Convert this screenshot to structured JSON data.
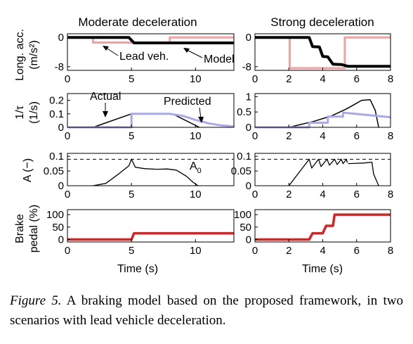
{
  "caption": {
    "label": "Figure 5.",
    "text": "A braking model based on the proposed framework, in two scenarios with lead vehicle deceleration."
  },
  "columns": [
    {
      "title": "Moderate deceleration",
      "xlabel": "Time (s)",
      "xlim": [
        0,
        13
      ],
      "xticks": [
        0,
        5,
        10
      ]
    },
    {
      "title": "Strong deceleration",
      "xlabel": "Time (s)",
      "xlim": [
        0,
        8
      ],
      "xticks": [
        0,
        2,
        4,
        6,
        8
      ]
    }
  ],
  "rows": [
    {
      "ylabel_lines": [
        "Long. acc.",
        "(m/s²)"
      ],
      "ylim": [
        -9,
        1
      ],
      "yticks": [
        0,
        -8
      ]
    },
    {
      "ylabel_lines": [
        "1/τ",
        "(1/s)"
      ],
      "ylim_left": [
        0,
        0.25
      ],
      "yticks_left": [
        0,
        0.1,
        0.2
      ],
      "ylim_right": [
        0,
        1.1
      ],
      "yticks_right": [
        0,
        0.5,
        1
      ]
    },
    {
      "ylabel_lines": [
        "A (−)"
      ],
      "ylim": [
        0,
        0.11
      ],
      "yticks": [
        0,
        0.05,
        0.1
      ]
    },
    {
      "ylabel_lines": [
        "Brake",
        "pedal (%)"
      ],
      "ylim": [
        -10,
        120
      ],
      "yticks": [
        0,
        50,
        100
      ]
    }
  ],
  "annotations": {
    "lead_veh": "Lead veh.",
    "model": "Model",
    "actual": "Actual",
    "predicted": "Predicted",
    "a0": "A",
    "a0_sub": "0"
  },
  "colors": {
    "model": "#000000",
    "lead": "#f4a0a0",
    "predicted": "#a8a8f0",
    "pedal": "#dd2020"
  },
  "chart_data": [
    {
      "type": "line",
      "title": "Moderate deceleration",
      "xlabel": "Time (s)",
      "ylabel": "Long. acc. (m/s²)",
      "xlim": [
        0,
        13
      ],
      "ylim": [
        -9,
        1
      ],
      "series": [
        {
          "name": "Lead veh.",
          "x": [
            0,
            2,
            2,
            8,
            8,
            13
          ],
          "y": [
            0,
            0,
            -1.4,
            -1.4,
            0,
            0
          ]
        },
        {
          "name": "Model",
          "x": [
            0,
            4.8,
            5.2,
            13
          ],
          "y": [
            0,
            0,
            -1.5,
            -1.5
          ]
        }
      ]
    },
    {
      "type": "line",
      "title": "Strong deceleration",
      "xlabel": "Time (s)",
      "ylabel": "Long. acc. (m/s²)",
      "xlim": [
        0,
        8
      ],
      "ylim": [
        -9,
        1
      ],
      "series": [
        {
          "x": [
            0,
            2.05,
            2.05,
            5.3,
            5.3,
            8
          ],
          "y": [
            0,
            0,
            -8.4,
            -8.4,
            0,
            0
          ]
        },
        {
          "x": [
            0,
            3.2,
            3.4,
            3.8,
            4.0,
            4.3,
            4.6,
            5.1,
            5.5,
            8
          ],
          "y": [
            0,
            0,
            -2.5,
            -2.6,
            -5.2,
            -5.3,
            -7.3,
            -7.4,
            -7.9,
            -7.9
          ]
        }
      ]
    },
    {
      "type": "line",
      "xlabel": "Time (s)",
      "ylabel": "1/τ (1/s)",
      "xlim": [
        0,
        13
      ],
      "ylim": [
        0,
        0.25
      ],
      "series": [
        {
          "name": "Actual",
          "x": [
            0,
            2,
            5,
            8.2,
            10.3
          ],
          "y": [
            0,
            0,
            0.1,
            0.1,
            0
          ]
        },
        {
          "name": "Predicted",
          "x": [
            0,
            5,
            5,
            8,
            9,
            10,
            11,
            12,
            13
          ],
          "y": [
            0,
            0,
            0.1,
            0.1,
            0.085,
            0.055,
            0.03,
            0.014,
            0.007
          ]
        }
      ]
    },
    {
      "type": "line",
      "xlabel": "Time (s)",
      "ylabel": "1/τ (1/s)",
      "xlim": [
        0,
        8
      ],
      "ylim": [
        0,
        1.1
      ],
      "series": [
        {
          "x": [
            0,
            2,
            3.5,
            4.5,
            5.4,
            6.3,
            6.8,
            7.1,
            7.3
          ],
          "y": [
            0,
            0,
            0.2,
            0.37,
            0.6,
            0.88,
            0.9,
            0.55,
            0
          ]
        },
        {
          "x": [
            0,
            3.2,
            3.2,
            4.3,
            4.3,
            5.2,
            5.2,
            8
          ],
          "y": [
            0,
            0,
            0.15,
            0.15,
            0.35,
            0.35,
            0.48,
            0.33
          ]
        }
      ]
    },
    {
      "type": "line",
      "xlabel": "Time (s)",
      "ylabel": "A (−)",
      "xlim": [
        0,
        13
      ],
      "ylim": [
        0,
        0.11
      ],
      "series": [
        {
          "name": "A₀",
          "x": [
            0,
            13
          ],
          "y": [
            0.09,
            0.09
          ]
        },
        {
          "x": [
            2,
            3,
            4,
            4.8,
            5,
            5.3,
            6,
            7,
            7.8,
            8.5,
            9.3,
            9.8,
            10.2
          ],
          "y": [
            0,
            0.008,
            0.04,
            0.068,
            0.09,
            0.063,
            0.058,
            0.056,
            0.057,
            0.053,
            0.032,
            0.012,
            0
          ]
        }
      ]
    },
    {
      "type": "line",
      "xlabel": "Time (s)",
      "ylabel": "A (−)",
      "xlim": [
        0,
        8
      ],
      "ylim": [
        0,
        0.11
      ],
      "series": [
        {
          "name": "A₀",
          "x": [
            0,
            8
          ],
          "y": [
            0.09,
            0.09
          ]
        },
        {
          "x": [
            2,
            3.2,
            3.35,
            3.75,
            3.9,
            4.25,
            4.4,
            4.7,
            4.85,
            5.1,
            5.2,
            5.4,
            5.45
          ],
          "y": [
            0,
            0.09,
            0.06,
            0.09,
            0.065,
            0.09,
            0.07,
            0.09,
            0.072,
            0.09,
            0.075,
            0.09,
            0.078
          ]
        },
        {
          "x": [
            5.5,
            6.4,
            6.9,
            7.0,
            7.3
          ],
          "y": [
            0.075,
            0.077,
            0.08,
            0.04,
            0
          ]
        }
      ]
    },
    {
      "type": "line",
      "xlabel": "Time (s)",
      "ylabel": "Brake pedal (%)",
      "xlim": [
        0,
        13
      ],
      "ylim": [
        -10,
        120
      ],
      "series": [
        {
          "x": [
            0,
            5,
            5.2,
            13
          ],
          "y": [
            0,
            0,
            25,
            25
          ]
        }
      ]
    },
    {
      "type": "line",
      "xlabel": "Time (s)",
      "ylabel": "Brake pedal (%)",
      "xlim": [
        0,
        8
      ],
      "ylim": [
        -10,
        120
      ],
      "series": [
        {
          "x": [
            0,
            3.2,
            3.4,
            4,
            4.2,
            4.6,
            4.7,
            8
          ],
          "y": [
            0,
            0,
            25,
            25,
            55,
            55,
            100,
            100
          ]
        }
      ]
    }
  ]
}
